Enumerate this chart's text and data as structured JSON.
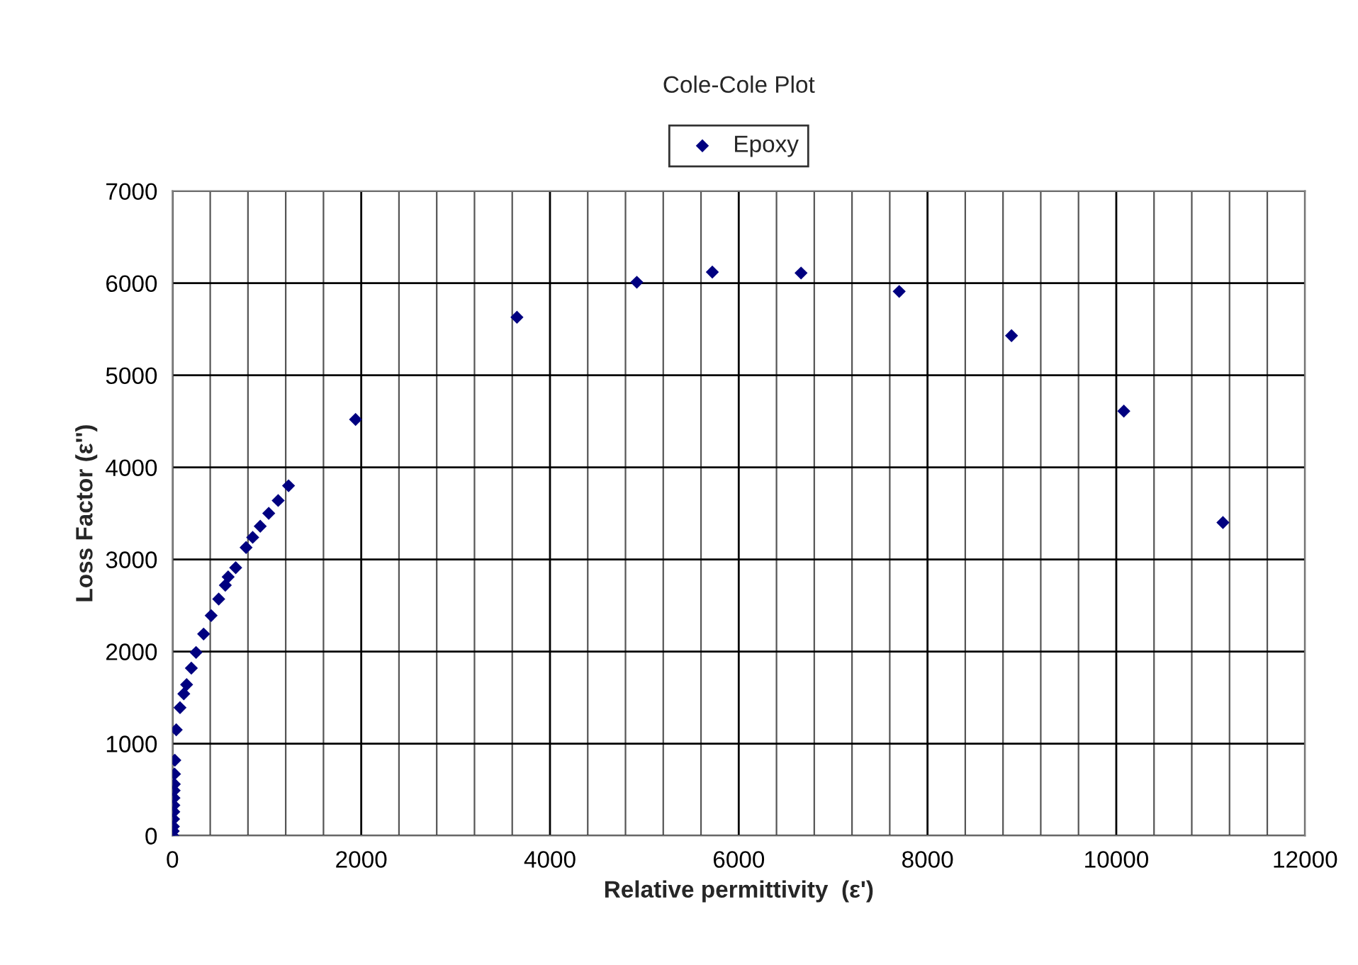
{
  "chart_data": {
    "type": "scatter",
    "title": "Cole-Cole Plot",
    "xlabel": "Relative permittivity  (ε')",
    "ylabel": "Loss Factor (ε'')",
    "series": [
      {
        "name": "Epoxy",
        "color": "#000080",
        "x": [
          5,
          8,
          10,
          12,
          14,
          15,
          16,
          18,
          20,
          22,
          25,
          40,
          80,
          120,
          150,
          200,
          250,
          330,
          410,
          490,
          560,
          590,
          670,
          780,
          850,
          930,
          1020,
          1120,
          1230,
          1940,
          3650,
          4920,
          5720,
          6660,
          7700,
          8890,
          10080,
          11130
        ],
        "values": [
          0,
          50,
          100,
          180,
          260,
          330,
          410,
          490,
          560,
          670,
          820,
          1150,
          1390,
          1540,
          1640,
          1820,
          1990,
          2190,
          2390,
          2570,
          2720,
          2810,
          2910,
          3130,
          3240,
          3360,
          3500,
          3640,
          3800,
          4520,
          5630,
          6010,
          6120,
          6110,
          5910,
          5430,
          4610,
          3400
        ]
      }
    ],
    "xlim": [
      0,
      12000
    ],
    "ylim": [
      0,
      7000
    ],
    "xticks": [
      0,
      2000,
      4000,
      6000,
      8000,
      10000,
      12000
    ],
    "yticks": [
      0,
      1000,
      2000,
      3000,
      4000,
      5000,
      6000,
      7000
    ],
    "grid": true,
    "legend": "top",
    "marker": "diamond"
  }
}
